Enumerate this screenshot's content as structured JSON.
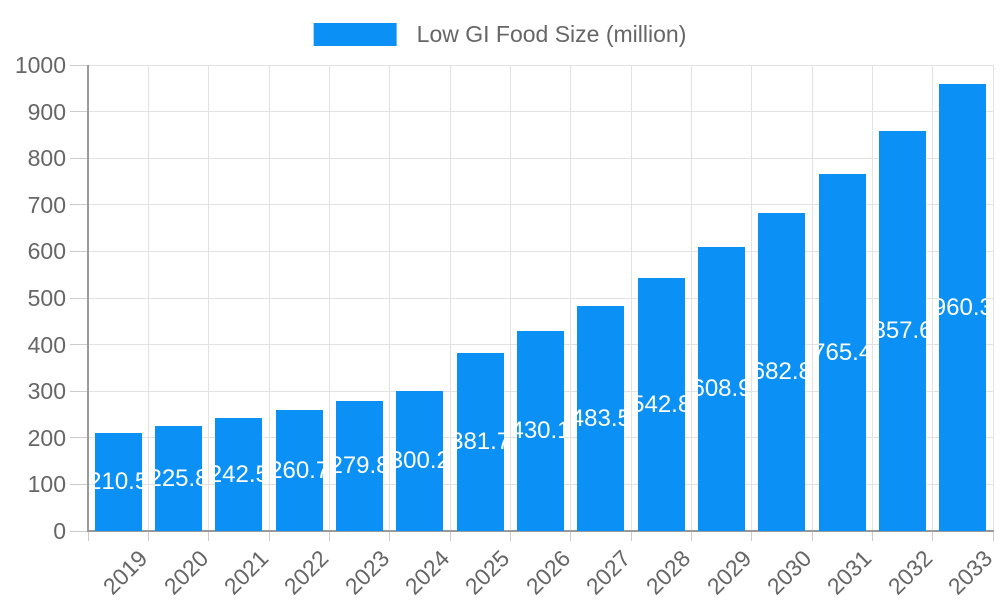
{
  "legend": {
    "label": "Low GI Food Size (million)"
  },
  "colors": {
    "bar": "#0b90f5",
    "bar_label": "#ffffff",
    "axis_text": "#666666",
    "grid_line": "#e2e2e2",
    "axis_line": "#9a9a9a",
    "tick_line": "#cccccc"
  },
  "chart_data": {
    "type": "bar",
    "title": "",
    "series_name": "Low GI Food Size (million)",
    "categories": [
      "2019",
      "2020",
      "2021",
      "2022",
      "2023",
      "2024",
      "2025",
      "2026",
      "2027",
      "2028",
      "2029",
      "2030",
      "2031",
      "2032",
      "2033"
    ],
    "values": [
      210.5,
      225.8,
      242.5,
      260.7,
      279.8,
      300.2,
      381.7,
      430.1,
      483.5,
      542.8,
      608.9,
      682.8,
      765.4,
      857.6,
      960.3
    ],
    "value_labels": [
      "210.5",
      "225.8",
      "242.5",
      "260.7",
      "279.8",
      "300.2",
      "381.7",
      "430.1",
      "483.5",
      "542.8",
      "608.9",
      "682.8",
      "765.4",
      "857.6",
      "960.3"
    ],
    "xlabel": "",
    "ylabel": "",
    "ylim": [
      0,
      1000
    ],
    "yticks": [
      0,
      100,
      200,
      300,
      400,
      500,
      600,
      700,
      800,
      900,
      1000
    ],
    "ytick_labels": [
      "0",
      "100",
      "200",
      "300",
      "400",
      "500",
      "600",
      "700",
      "800",
      "900",
      "1000"
    ],
    "grid": true,
    "vertical_grid": true,
    "legend_position": "top",
    "bar_label_position": "middle-inside",
    "x_label_rotation_deg": -45
  }
}
